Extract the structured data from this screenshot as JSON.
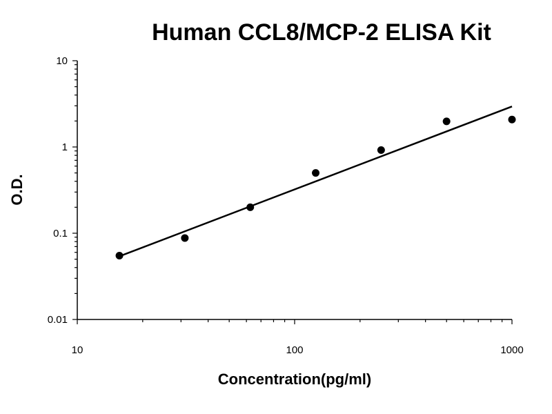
{
  "chart_data": {
    "type": "scatter",
    "title": "Human CCL8/MCP-2 ELISA Kit",
    "xlabel": "Concentration(pg/ml)",
    "ylabel": "O.D.",
    "x_scale": "log",
    "y_scale": "log",
    "xlim": [
      10,
      1000
    ],
    "ylim": [
      0.01,
      10
    ],
    "x_ticks": [
      {
        "value": 10,
        "label": "10"
      },
      {
        "value": 100,
        "label": "100"
      },
      {
        "value": 1000,
        "label": "1000"
      }
    ],
    "y_ticks": [
      {
        "value": 0.01,
        "label": "0.01"
      },
      {
        "value": 0.1,
        "label": "0.1"
      },
      {
        "value": 1,
        "label": "1"
      },
      {
        "value": 10,
        "label": "10"
      }
    ],
    "grid": false,
    "points": [
      {
        "x": 15.625,
        "y": 0.055
      },
      {
        "x": 31.25,
        "y": 0.088
      },
      {
        "x": 62.5,
        "y": 0.2
      },
      {
        "x": 125,
        "y": 0.5
      },
      {
        "x": 250,
        "y": 0.92
      },
      {
        "x": 500,
        "y": 1.98
      },
      {
        "x": 1000,
        "y": 2.08
      }
    ],
    "trendline": {
      "type": "power",
      "start": {
        "x": 15.625,
        "y": 0.054
      },
      "end": {
        "x": 1000,
        "y": 2.95
      }
    },
    "colors": {
      "points": "#000000",
      "trendline": "#000000"
    }
  }
}
